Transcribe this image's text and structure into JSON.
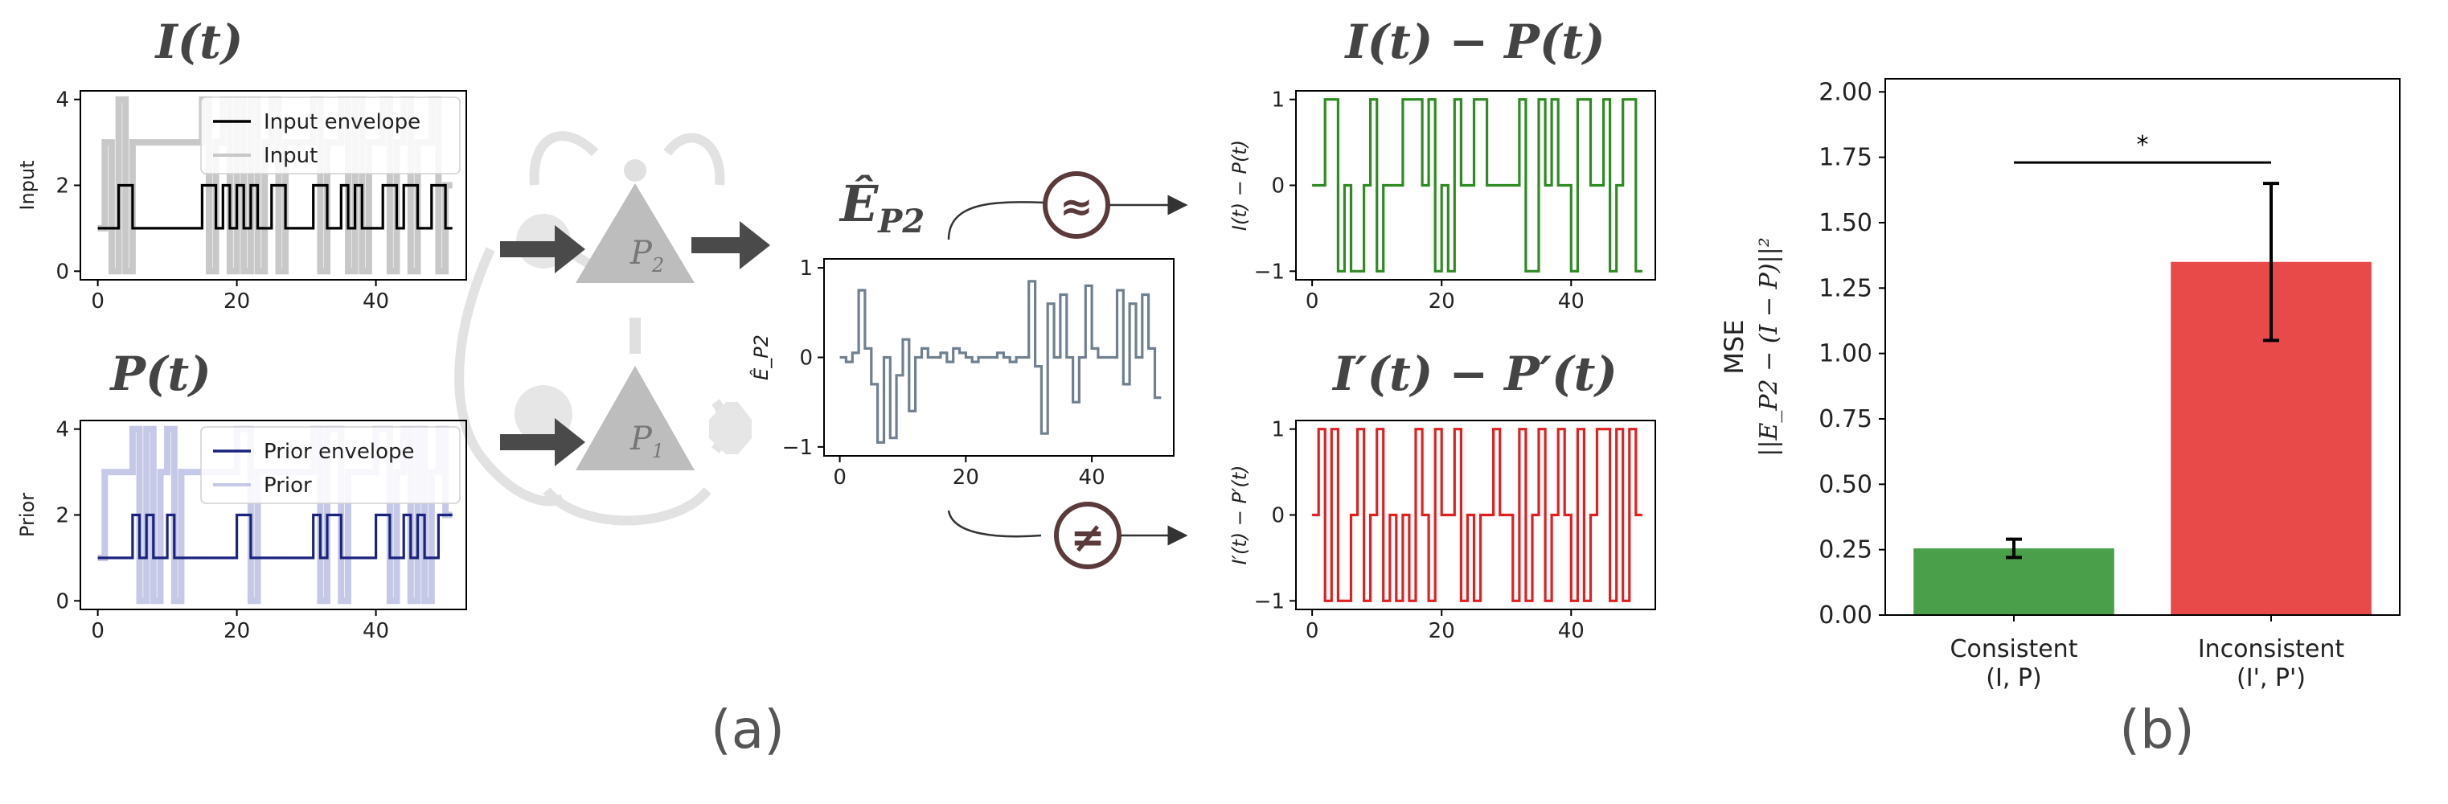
{
  "figure": {
    "panel_a_label": "(a)",
    "panel_b_label": "(b)",
    "schematic": {
      "node_top": "P",
      "node_top_sub": "2",
      "node_bottom": "P",
      "node_bottom_sub": "1",
      "error_title": "Ê",
      "error_title_sub": "P2",
      "approx_symbol": "≈",
      "neq_symbol": "≠"
    }
  },
  "chart_data": [
    {
      "id": "input",
      "type": "line",
      "title": "I(t)",
      "ylabel": "Input",
      "xlim": [
        -2.5,
        53
      ],
      "ylim": [
        -0.2,
        4.2
      ],
      "xticks": [
        0,
        20,
        40
      ],
      "yticks": [
        0,
        2,
        4
      ],
      "legend": "top-right",
      "series": [
        {
          "name": "Input envelope",
          "color": "#000000",
          "values": [
            1,
            1,
            1,
            2,
            2,
            1,
            1,
            1,
            1,
            1,
            1,
            1,
            1,
            1,
            1,
            2,
            2,
            1,
            2,
            1,
            2,
            1,
            2,
            1,
            1,
            2,
            2,
            1,
            1,
            1,
            1,
            2,
            2,
            1,
            1,
            2,
            1,
            2,
            1,
            1,
            1,
            2,
            2,
            1,
            2,
            2,
            1,
            1,
            2,
            2,
            1
          ]
        },
        {
          "name": "Input",
          "color": "#c8c8c8",
          "values": [
            1,
            3,
            0,
            4,
            0,
            3,
            3,
            3,
            3,
            3,
            3,
            3,
            3,
            3,
            3,
            4,
            0,
            3,
            4,
            0,
            4,
            0,
            4,
            0,
            3,
            4,
            0,
            3,
            3,
            3,
            3,
            4,
            0,
            3,
            3,
            4,
            0,
            4,
            0,
            3,
            3,
            4,
            0,
            3,
            4,
            0,
            3,
            3,
            4,
            0,
            2
          ]
        }
      ]
    },
    {
      "id": "prior",
      "type": "line",
      "title": "P(t)",
      "ylabel": "Prior",
      "xlim": [
        -2.5,
        53
      ],
      "ylim": [
        -0.2,
        4.2
      ],
      "xticks": [
        0,
        20,
        40
      ],
      "yticks": [
        0,
        2,
        4
      ],
      "legend": "top-right",
      "series": [
        {
          "name": "Prior envelope",
          "color": "#1a237e",
          "values": [
            1,
            1,
            1,
            1,
            1,
            2,
            1,
            2,
            1,
            1,
            2,
            1,
            1,
            1,
            1,
            1,
            1,
            1,
            1,
            1,
            2,
            2,
            1,
            1,
            1,
            1,
            1,
            1,
            1,
            1,
            1,
            2,
            1,
            2,
            2,
            1,
            1,
            1,
            1,
            1,
            2,
            2,
            1,
            1,
            2,
            1,
            2,
            1,
            1,
            2,
            2
          ]
        },
        {
          "name": "Prior",
          "color": "#c5c8e6",
          "values": [
            1,
            3,
            3,
            3,
            3,
            4,
            0,
            4,
            0,
            3,
            4,
            0,
            3,
            3,
            3,
            3,
            3,
            3,
            3,
            3,
            4,
            4,
            0,
            3,
            3,
            3,
            3,
            3,
            3,
            3,
            3,
            4,
            0,
            4,
            4,
            0,
            3,
            3,
            3,
            3,
            4,
            4,
            0,
            3,
            4,
            0,
            4,
            0,
            3,
            4,
            2
          ]
        }
      ]
    },
    {
      "id": "error",
      "type": "line",
      "title": "",
      "ylabel": "Ê_P2",
      "xlim": [
        -2.5,
        53
      ],
      "ylim": [
        -1.1,
        1.1
      ],
      "xticks": [
        0,
        20,
        40
      ],
      "yticks": [
        -1,
        0,
        1
      ],
      "series": [
        {
          "name": "",
          "color": "#708090",
          "values": [
            0.0,
            -0.05,
            0.05,
            0.75,
            0.1,
            -0.3,
            -0.95,
            0.0,
            -0.9,
            -0.2,
            0.2,
            -0.6,
            0.0,
            0.1,
            0.0,
            0.0,
            0.05,
            -0.05,
            0.1,
            0.05,
            0.0,
            -0.05,
            0.0,
            0.0,
            0.0,
            0.05,
            0.0,
            -0.05,
            0.0,
            0.0,
            0.85,
            -0.1,
            -0.85,
            0.6,
            0.0,
            0.7,
            0.0,
            -0.5,
            0.0,
            0.8,
            0.1,
            0.0,
            0.0,
            0.0,
            0.75,
            -0.3,
            0.6,
            0.0,
            0.7,
            0.1,
            -0.45
          ]
        }
      ]
    },
    {
      "id": "consistent-diff",
      "type": "line",
      "title": "I(t) − P(t)",
      "ylabel": "I(t) − P(t)",
      "xlim": [
        -2.5,
        53
      ],
      "ylim": [
        -1.1,
        1.1
      ],
      "xticks": [
        0,
        20,
        40
      ],
      "yticks": [
        -1,
        0,
        1
      ],
      "series": [
        {
          "name": "",
          "color": "#2e8b22",
          "values": [
            0,
            0,
            1,
            1,
            -1,
            0,
            -1,
            -1,
            0,
            1,
            -1,
            0,
            0,
            0,
            1,
            1,
            1,
            0,
            1,
            -1,
            0,
            -1,
            1,
            0,
            0,
            1,
            1,
            0,
            0,
            0,
            0,
            0,
            1,
            -1,
            -1,
            1,
            0,
            1,
            0,
            0,
            -1,
            1,
            1,
            0,
            0,
            1,
            -1,
            0,
            1,
            1,
            -1
          ]
        }
      ]
    },
    {
      "id": "inconsistent-diff",
      "type": "line",
      "title": "I′(t) − P′(t)",
      "ylabel": "I′(t) − P′(t)",
      "xlim": [
        -2.5,
        53
      ],
      "ylim": [
        -1.1,
        1.1
      ],
      "xticks": [
        0,
        20,
        40
      ],
      "yticks": [
        -1,
        0,
        1
      ],
      "series": [
        {
          "name": "",
          "color": "#e02020",
          "values": [
            0,
            1,
            -1,
            1,
            -1,
            -1,
            0,
            1,
            -1,
            0,
            1,
            -1,
            0,
            -1,
            0,
            -1,
            1,
            0,
            -1,
            1,
            0,
            0,
            1,
            -1,
            0,
            -1,
            0,
            0,
            1,
            0,
            0,
            -1,
            1,
            -1,
            0,
            1,
            -1,
            0,
            1,
            0,
            -1,
            1,
            -1,
            0,
            1,
            1,
            -1,
            1,
            -1,
            1,
            0
          ]
        }
      ]
    },
    {
      "id": "mse-bars",
      "type": "bar",
      "title": "",
      "ylabel": "MSE",
      "ylabel_formula": "||E_P2 − (I − P)||²",
      "ylim": [
        0,
        2.05
      ],
      "yticks": [
        0.0,
        0.25,
        0.5,
        0.75,
        1.0,
        1.25,
        1.5,
        1.75,
        2.0
      ],
      "yticklabels": [
        "0.00",
        "0.25",
        "0.50",
        "0.75",
        "1.00",
        "1.25",
        "1.50",
        "1.75",
        "2.00"
      ],
      "categories": [
        "Consistent\n(I, P)",
        "Inconsistent\n(I', P')"
      ],
      "values": [
        0.255,
        1.35
      ],
      "errors": [
        0.035,
        0.3
      ],
      "colors": [
        "#4aa04a",
        "#e84a4a"
      ],
      "significance": {
        "label": "*",
        "y": 1.73
      }
    }
  ]
}
